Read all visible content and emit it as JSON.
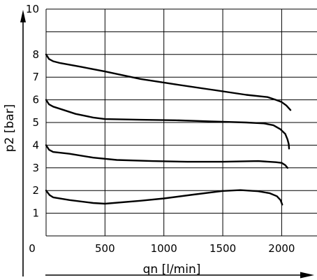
{
  "chart_data": {
    "type": "line",
    "xlabel": "qn [l/min]",
    "ylabel": "p2 [bar]",
    "xlim": [
      0,
      2300
    ],
    "ylim": [
      0,
      10
    ],
    "x_ticks": [
      "0",
      "500",
      "1000",
      "1500",
      "2000"
    ],
    "y_ticks": [
      "1",
      "2",
      "3",
      "4",
      "5",
      "6",
      "7",
      "8",
      "10"
    ],
    "grid": true,
    "series": [
      {
        "x": [
          0,
          25,
          60,
          120,
          300,
          500,
          800,
          1100,
          1400,
          1700,
          1880,
          1950,
          2000,
          2040,
          2075
        ],
        "values": [
          8.0,
          7.8,
          7.7,
          7.62,
          7.45,
          7.25,
          6.92,
          6.68,
          6.45,
          6.22,
          6.12,
          6.0,
          5.9,
          5.75,
          5.55
        ]
      },
      {
        "x": [
          0,
          25,
          60,
          150,
          250,
          400,
          500,
          800,
          1100,
          1400,
          1700,
          1850,
          1930,
          1990,
          2030,
          2050,
          2060,
          2063
        ],
        "values": [
          6.0,
          5.8,
          5.7,
          5.55,
          5.38,
          5.22,
          5.15,
          5.12,
          5.1,
          5.05,
          5.0,
          4.96,
          4.88,
          4.7,
          4.5,
          4.25,
          4.05,
          3.85
        ]
      },
      {
        "x": [
          0,
          25,
          60,
          200,
          400,
          600,
          900,
          1200,
          1500,
          1800,
          1950,
          2000,
          2030,
          2050
        ],
        "values": [
          4.0,
          3.8,
          3.7,
          3.62,
          3.45,
          3.35,
          3.3,
          3.27,
          3.27,
          3.3,
          3.25,
          3.22,
          3.12,
          3.0
        ]
      },
      {
        "x": [
          0,
          30,
          60,
          200,
          400,
          500,
          800,
          1000,
          1250,
          1500,
          1650,
          1800,
          1900,
          1960,
          1990,
          2000,
          2005
        ],
        "values": [
          2.0,
          1.8,
          1.7,
          1.58,
          1.45,
          1.42,
          1.55,
          1.65,
          1.82,
          1.98,
          2.02,
          1.97,
          1.88,
          1.75,
          1.58,
          1.45,
          1.38
        ]
      }
    ]
  }
}
